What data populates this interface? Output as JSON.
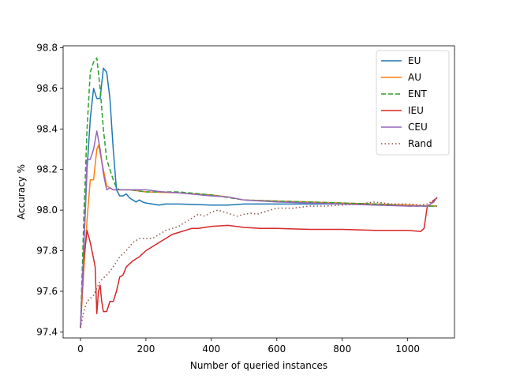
{
  "chart_data": {
    "type": "line",
    "title": "",
    "xlabel": "Number of queried instances",
    "ylabel": "Accuracy %",
    "xlim": [
      -53,
      1143
    ],
    "ylim": [
      97.37,
      98.81
    ],
    "xticks": [
      0,
      200,
      400,
      600,
      800,
      1000
    ],
    "yticks": [
      97.4,
      97.6,
      97.8,
      98.0,
      98.2,
      98.4,
      98.6,
      98.8
    ],
    "grid": false,
    "legend_position": "top-right",
    "series": [
      {
        "name": " EU",
        "color": "#1f77b4",
        "style": "solid",
        "points": [
          [
            0,
            97.42
          ],
          [
            10,
            97.8
          ],
          [
            20,
            98.2
          ],
          [
            30,
            98.45
          ],
          [
            40,
            98.6
          ],
          [
            50,
            98.55
          ],
          [
            60,
            98.55
          ],
          [
            70,
            98.7
          ],
          [
            80,
            98.68
          ],
          [
            90,
            98.55
          ],
          [
            100,
            98.3
          ],
          [
            110,
            98.1
          ],
          [
            120,
            98.07
          ],
          [
            130,
            98.07
          ],
          [
            140,
            98.08
          ],
          [
            150,
            98.06
          ],
          [
            160,
            98.05
          ],
          [
            170,
            98.04
          ],
          [
            180,
            98.05
          ],
          [
            190,
            98.04
          ],
          [
            200,
            98.035
          ],
          [
            220,
            98.03
          ],
          [
            240,
            98.025
          ],
          [
            260,
            98.03
          ],
          [
            300,
            98.03
          ],
          [
            400,
            98.025
          ],
          [
            450,
            98.025
          ],
          [
            500,
            98.03
          ],
          [
            600,
            98.03
          ],
          [
            700,
            98.03
          ],
          [
            800,
            98.03
          ],
          [
            900,
            98.03
          ],
          [
            1000,
            98.025
          ],
          [
            1050,
            98.02
          ],
          [
            1090,
            98.02
          ]
        ]
      },
      {
        "name": " AU",
        "color": "#ff7f0e",
        "style": "solid",
        "points": [
          [
            0,
            97.42
          ],
          [
            10,
            97.7
          ],
          [
            20,
            97.95
          ],
          [
            30,
            98.15
          ],
          [
            40,
            98.15
          ],
          [
            50,
            98.3
          ],
          [
            55,
            98.32
          ],
          [
            60,
            98.28
          ],
          [
            70,
            98.2
          ],
          [
            80,
            98.12
          ],
          [
            90,
            98.11
          ],
          [
            100,
            98.1
          ],
          [
            120,
            98.1
          ],
          [
            150,
            98.1
          ],
          [
            200,
            98.09
          ],
          [
            300,
            98.085
          ],
          [
            400,
            98.075
          ],
          [
            450,
            98.065
          ],
          [
            500,
            98.05
          ],
          [
            600,
            98.045
          ],
          [
            700,
            98.04
          ],
          [
            800,
            98.035
          ],
          [
            900,
            98.03
          ],
          [
            1000,
            98.025
          ],
          [
            1090,
            98.02
          ]
        ]
      },
      {
        "name": " ENT",
        "color": "#2ca02c",
        "style": "dashed",
        "points": [
          [
            0,
            97.42
          ],
          [
            10,
            97.95
          ],
          [
            20,
            98.4
          ],
          [
            30,
            98.68
          ],
          [
            40,
            98.73
          ],
          [
            50,
            98.75
          ],
          [
            60,
            98.6
          ],
          [
            70,
            98.4
          ],
          [
            80,
            98.25
          ],
          [
            90,
            98.2
          ],
          [
            100,
            98.15
          ],
          [
            110,
            98.11
          ],
          [
            120,
            98.1
          ],
          [
            150,
            98.1
          ],
          [
            200,
            98.09
          ],
          [
            300,
            98.09
          ],
          [
            400,
            98.075
          ],
          [
            500,
            98.05
          ],
          [
            600,
            98.045
          ],
          [
            700,
            98.04
          ],
          [
            800,
            98.035
          ],
          [
            900,
            98.03
          ],
          [
            1000,
            98.02
          ],
          [
            1090,
            98.02
          ]
        ]
      },
      {
        "name": " IEU",
        "color": "#d62728",
        "style": "solid",
        "points": [
          [
            0,
            97.42
          ],
          [
            10,
            97.75
          ],
          [
            20,
            97.9
          ],
          [
            30,
            97.84
          ],
          [
            40,
            97.76
          ],
          [
            45,
            97.72
          ],
          [
            50,
            97.49
          ],
          [
            55,
            97.6
          ],
          [
            60,
            97.63
          ],
          [
            65,
            97.55
          ],
          [
            70,
            97.5
          ],
          [
            80,
            97.5
          ],
          [
            90,
            97.55
          ],
          [
            100,
            97.55
          ],
          [
            110,
            97.6
          ],
          [
            120,
            97.67
          ],
          [
            130,
            97.68
          ],
          [
            140,
            97.72
          ],
          [
            160,
            97.75
          ],
          [
            180,
            97.77
          ],
          [
            200,
            97.8
          ],
          [
            220,
            97.82
          ],
          [
            240,
            97.84
          ],
          [
            260,
            97.86
          ],
          [
            280,
            97.88
          ],
          [
            300,
            97.89
          ],
          [
            340,
            97.91
          ],
          [
            360,
            97.91
          ],
          [
            380,
            97.915
          ],
          [
            400,
            97.92
          ],
          [
            450,
            97.925
          ],
          [
            500,
            97.915
          ],
          [
            550,
            97.91
          ],
          [
            600,
            97.91
          ],
          [
            700,
            97.905
          ],
          [
            800,
            97.905
          ],
          [
            900,
            97.9
          ],
          [
            1000,
            97.9
          ],
          [
            1040,
            97.895
          ],
          [
            1050,
            97.91
          ],
          [
            1060,
            98.02
          ],
          [
            1070,
            98.03
          ],
          [
            1080,
            98.05
          ],
          [
            1090,
            98.06
          ]
        ]
      },
      {
        "name": " CEU",
        "color": "#9467bd",
        "style": "solid",
        "points": [
          [
            0,
            97.42
          ],
          [
            10,
            97.8
          ],
          [
            20,
            98.25
          ],
          [
            30,
            98.25
          ],
          [
            40,
            98.3
          ],
          [
            50,
            98.39
          ],
          [
            60,
            98.3
          ],
          [
            70,
            98.18
          ],
          [
            80,
            98.1
          ],
          [
            90,
            98.11
          ],
          [
            100,
            98.1
          ],
          [
            150,
            98.1
          ],
          [
            200,
            98.1
          ],
          [
            250,
            98.09
          ],
          [
            300,
            98.085
          ],
          [
            400,
            98.07
          ],
          [
            450,
            98.065
          ],
          [
            500,
            98.05
          ],
          [
            600,
            98.04
          ],
          [
            700,
            98.035
          ],
          [
            800,
            98.03
          ],
          [
            900,
            98.025
          ],
          [
            1000,
            98.02
          ],
          [
            1060,
            98.02
          ],
          [
            1080,
            98.04
          ],
          [
            1090,
            98.065
          ]
        ]
      },
      {
        "name": " Rand",
        "color": "#8c564b",
        "style": "dotted",
        "points": [
          [
            0,
            97.42
          ],
          [
            10,
            97.5
          ],
          [
            20,
            97.55
          ],
          [
            40,
            97.58
          ],
          [
            60,
            97.65
          ],
          [
            80,
            97.68
          ],
          [
            100,
            97.72
          ],
          [
            120,
            97.77
          ],
          [
            140,
            97.8
          ],
          [
            160,
            97.84
          ],
          [
            180,
            97.86
          ],
          [
            200,
            97.86
          ],
          [
            220,
            97.86
          ],
          [
            240,
            97.88
          ],
          [
            260,
            97.9
          ],
          [
            280,
            97.91
          ],
          [
            300,
            97.92
          ],
          [
            320,
            97.94
          ],
          [
            340,
            97.96
          ],
          [
            360,
            97.98
          ],
          [
            380,
            97.97
          ],
          [
            400,
            97.99
          ],
          [
            420,
            98.0
          ],
          [
            440,
            97.99
          ],
          [
            460,
            97.98
          ],
          [
            480,
            97.97
          ],
          [
            500,
            97.98
          ],
          [
            520,
            97.985
          ],
          [
            540,
            97.98
          ],
          [
            560,
            97.99
          ],
          [
            580,
            98.0
          ],
          [
            600,
            98.01
          ],
          [
            650,
            98.01
          ],
          [
            700,
            98.02
          ],
          [
            750,
            98.02
          ],
          [
            800,
            98.025
          ],
          [
            850,
            98.03
          ],
          [
            900,
            98.04
          ],
          [
            950,
            98.03
          ],
          [
            1000,
            98.03
          ],
          [
            1040,
            98.025
          ],
          [
            1060,
            98.03
          ],
          [
            1090,
            98.06
          ]
        ]
      }
    ]
  }
}
